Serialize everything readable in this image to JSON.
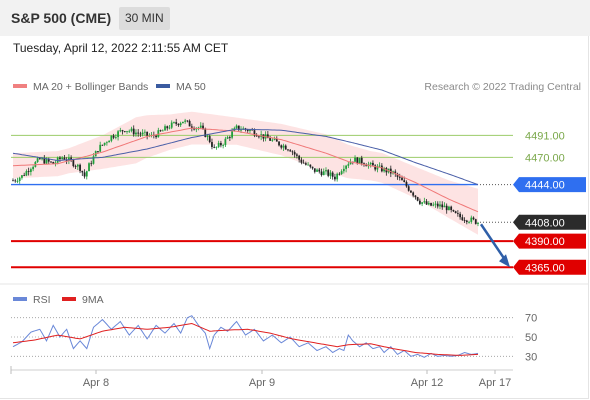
{
  "header": {
    "symbol": "S&P 500 (CME)",
    "timeframe_button": "30 MIN",
    "datetime": "Tuesday, April 12, 2022 2:11:55 AM CET"
  },
  "colors": {
    "bollinger_band": "#fcdada",
    "ma20": "#f07878",
    "ma50": "#4a5fa8",
    "resistance": "#9ccc6a",
    "pivot": "#2f6ff0",
    "support": "#e00000",
    "candle_up": "#1f9e3a",
    "candle_down": "#222222",
    "rsi": "#6a88d8",
    "rsi_ma": "#e02020",
    "arrow": "#2f5fa8"
  },
  "chart_data": [
    {
      "type": "candlestick",
      "title": "S&P 500 (CME)",
      "timeframe": "30 MIN",
      "legend": [
        {
          "name": "MA 20 + Bollinger Bands",
          "color": "#f08080"
        },
        {
          "name": "MA 50",
          "color": "#3a5ba0"
        }
      ],
      "legend_placement": "top-left",
      "copyright": "Research © 2022 Trading Central",
      "x_tick_labels": [
        "Apr 8",
        "Apr 9",
        "Apr 12",
        "Apr 17"
      ],
      "ylim": [
        4349,
        4521
      ],
      "levels": [
        {
          "value": 4491.0,
          "label": "4491.00",
          "kind": "resistance"
        },
        {
          "value": 4470.0,
          "label": "4470.00",
          "kind": "resistance"
        },
        {
          "value": 4444.0,
          "label": "4444.00",
          "kind": "pivot"
        },
        {
          "value": 4408.0,
          "label": "4408.00",
          "kind": "last_price"
        },
        {
          "value": 4390.0,
          "label": "4390.00",
          "kind": "support"
        },
        {
          "value": 4365.0,
          "label": "4365.00",
          "kind": "support"
        }
      ],
      "forecast_arrow": {
        "from": 4408,
        "to": 4365,
        "direction": "down"
      },
      "close_keypoints": [
        [
          0,
          4448
        ],
        [
          4,
          4452
        ],
        [
          8,
          4461
        ],
        [
          12,
          4468
        ],
        [
          18,
          4464
        ],
        [
          22,
          4470
        ],
        [
          26,
          4466
        ],
        [
          30,
          4460
        ],
        [
          32,
          4452
        ],
        [
          34,
          4462
        ],
        [
          38,
          4478
        ],
        [
          44,
          4490
        ],
        [
          50,
          4497
        ],
        [
          56,
          4493
        ],
        [
          62,
          4490
        ],
        [
          66,
          4494
        ],
        [
          70,
          4500
        ],
        [
          76,
          4505
        ],
        [
          80,
          4500
        ],
        [
          84,
          4498
        ],
        [
          88,
          4486
        ],
        [
          90,
          4478
        ],
        [
          94,
          4484
        ],
        [
          100,
          4498
        ],
        [
          106,
          4496
        ],
        [
          112,
          4490
        ],
        [
          118,
          4484
        ],
        [
          124,
          4478
        ],
        [
          128,
          4468
        ],
        [
          134,
          4458
        ],
        [
          140,
          4455
        ],
        [
          144,
          4451
        ],
        [
          148,
          4462
        ],
        [
          152,
          4468
        ],
        [
          156,
          4466
        ],
        [
          160,
          4462
        ],
        [
          166,
          4458
        ],
        [
          170,
          4455
        ],
        [
          174,
          4447
        ],
        [
          178,
          4438
        ],
        [
          182,
          4428
        ],
        [
          186,
          4424
        ],
        [
          190,
          4424
        ],
        [
          194,
          4422
        ],
        [
          197,
          4416
        ],
        [
          200,
          4413
        ],
        [
          205,
          4410
        ],
        [
          208,
          4408
        ]
      ],
      "ma20_keypoints": [
        [
          0,
          4462
        ],
        [
          20,
          4464
        ],
        [
          40,
          4475
        ],
        [
          60,
          4490
        ],
        [
          80,
          4498
        ],
        [
          100,
          4495
        ],
        [
          120,
          4487
        ],
        [
          140,
          4474
        ],
        [
          150,
          4466
        ],
        [
          165,
          4460
        ],
        [
          180,
          4446
        ],
        [
          195,
          4430
        ],
        [
          208,
          4418
        ]
      ],
      "ma50_keypoints": [
        [
          0,
          4474
        ],
        [
          20,
          4467
        ],
        [
          40,
          4470
        ],
        [
          60,
          4478
        ],
        [
          80,
          4489
        ],
        [
          100,
          4497
        ],
        [
          120,
          4496
        ],
        [
          140,
          4490
        ],
        [
          150,
          4485
        ],
        [
          165,
          4477
        ],
        [
          180,
          4465
        ],
        [
          195,
          4454
        ],
        [
          208,
          4444
        ]
      ],
      "bollinger_halfwidth_keypoints": [
        [
          0,
          12
        ],
        [
          25,
          12
        ],
        [
          40,
          16
        ],
        [
          55,
          22
        ],
        [
          70,
          17
        ],
        [
          85,
          15
        ],
        [
          100,
          13
        ],
        [
          120,
          15
        ],
        [
          140,
          18
        ],
        [
          160,
          14
        ],
        [
          180,
          15
        ],
        [
          195,
          18
        ],
        [
          208,
          22
        ]
      ]
    },
    {
      "type": "line",
      "title": "RSI",
      "legend": [
        {
          "name": "RSI",
          "color": "#6a88d8"
        },
        {
          "name": "9MA",
          "color": "#e02020"
        }
      ],
      "legend_placement": "top-left",
      "y_tick_labels": [
        "70",
        "50",
        "30"
      ],
      "ylim": [
        20,
        80
      ],
      "series": [
        {
          "name": "RSI",
          "keypoints": [
            [
              0,
              40
            ],
            [
              4,
              45
            ],
            [
              8,
              55
            ],
            [
              12,
              58
            ],
            [
              15,
              46
            ],
            [
              18,
              62
            ],
            [
              21,
              50
            ],
            [
              24,
              58
            ],
            [
              27,
              38
            ],
            [
              30,
              46
            ],
            [
              33,
              38
            ],
            [
              36,
              60
            ],
            [
              40,
              68
            ],
            [
              44,
              58
            ],
            [
              48,
              66
            ],
            [
              52,
              52
            ],
            [
              56,
              62
            ],
            [
              60,
              48
            ],
            [
              64,
              62
            ],
            [
              68,
              54
            ],
            [
              72,
              64
            ],
            [
              75,
              54
            ],
            [
              78,
              70
            ],
            [
              80,
              72
            ],
            [
              83,
              62
            ],
            [
              86,
              54
            ],
            [
              88,
              38
            ],
            [
              90,
              52
            ],
            [
              93,
              60
            ],
            [
              96,
              56
            ],
            [
              100,
              66
            ],
            [
              104,
              52
            ],
            [
              108,
              58
            ],
            [
              112,
              46
            ],
            [
              116,
              52
            ],
            [
              120,
              44
            ],
            [
              124,
              50
            ],
            [
              128,
              40
            ],
            [
              132,
              44
            ],
            [
              136,
              36
            ],
            [
              140,
              40
            ],
            [
              143,
              34
            ],
            [
              146,
              38
            ],
            [
              148,
              36
            ],
            [
              150,
              52
            ],
            [
              152,
              46
            ],
            [
              155,
              40
            ],
            [
              158,
              44
            ],
            [
              161,
              38
            ],
            [
              164,
              40
            ],
            [
              166,
              34
            ],
            [
              169,
              40
            ],
            [
              172,
              32
            ],
            [
              175,
              36
            ],
            [
              178,
              30
            ],
            [
              181,
              32
            ],
            [
              184,
              29
            ],
            [
              187,
              33
            ],
            [
              190,
              30
            ],
            [
              193,
              31
            ],
            [
              196,
              30
            ],
            [
              199,
              31
            ],
            [
              202,
              34
            ],
            [
              205,
              32
            ],
            [
              208,
              33
            ]
          ]
        },
        {
          "name": "9MA",
          "keypoints": [
            [
              0,
              44
            ],
            [
              10,
              47
            ],
            [
              20,
              52
            ],
            [
              30,
              48
            ],
            [
              40,
              56
            ],
            [
              50,
              60
            ],
            [
              60,
              58
            ],
            [
              70,
              60
            ],
            [
              80,
              64
            ],
            [
              88,
              56
            ],
            [
              95,
              57
            ],
            [
              105,
              58
            ],
            [
              115,
              54
            ],
            [
              125,
              48
            ],
            [
              135,
              44
            ],
            [
              145,
              40
            ],
            [
              150,
              42
            ],
            [
              160,
              43
            ],
            [
              170,
              38
            ],
            [
              180,
              34
            ],
            [
              190,
              32
            ],
            [
              200,
              31
            ],
            [
              208,
              32
            ]
          ]
        }
      ]
    }
  ]
}
